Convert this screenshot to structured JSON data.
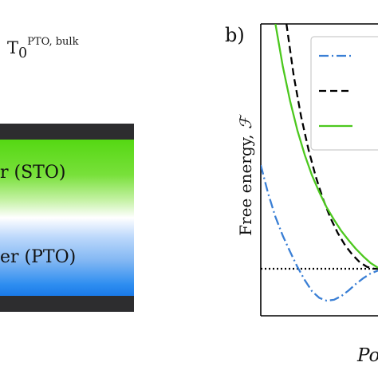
{
  "left_panel": {
    "temperature_base": "T",
    "temperature_subscript": "0",
    "temperature_superscript": "PTO, bulk",
    "top_layer_label": "r (STO)",
    "bottom_layer_label": "er (PTO)",
    "top_layer_color": "#55d813",
    "bottom_layer_color": "#1a7ae8",
    "cap_color": "#2d2d2f"
  },
  "right_panel": {
    "panel_label": "b)",
    "ylabel_text": "Free energy, ",
    "ylabel_symbol": "ℱ",
    "xlabel": "Po"
  },
  "chart_data": {
    "type": "line",
    "xlabel": "Po",
    "ylabel": "Free energy, ℱ",
    "legend_placement": "top-right",
    "baseline": {
      "y": 0,
      "style": "dotted",
      "color": "#000000"
    },
    "series": [
      {
        "style": "dashdot",
        "color": "#3a7fd5",
        "x": [
          0.6,
          0.7,
          0.8,
          0.9,
          1.0,
          1.1,
          1.2,
          1.3,
          1.4,
          1.5,
          1.6,
          1.7,
          1.8,
          1.9,
          2.0,
          2.1,
          2.2
        ],
        "y": [
          1.1,
          0.8,
          0.55,
          0.35,
          0.18,
          0.02,
          -0.12,
          -0.24,
          -0.31,
          -0.34,
          -0.33,
          -0.29,
          -0.23,
          -0.16,
          -0.1,
          -0.05,
          -0.02
        ]
      },
      {
        "style": "dashed",
        "color": "#000000",
        "x": [
          0.95,
          1.05,
          1.15,
          1.25,
          1.35,
          1.45,
          1.55,
          1.65,
          1.75,
          1.85,
          1.95,
          2.05,
          2.15,
          2.2
        ],
        "y": [
          2.6,
          2.05,
          1.62,
          1.27,
          0.98,
          0.74,
          0.54,
          0.38,
          0.25,
          0.15,
          0.07,
          0.02,
          0.0,
          0.0
        ]
      },
      {
        "style": "solid",
        "color": "#4cc81e",
        "x": [
          0.8,
          0.9,
          1.0,
          1.1,
          1.2,
          1.3,
          1.4,
          1.5,
          1.6,
          1.7,
          1.8,
          1.9,
          2.0,
          2.1,
          2.2
        ],
        "y": [
          2.6,
          2.15,
          1.78,
          1.47,
          1.21,
          0.99,
          0.81,
          0.65,
          0.52,
          0.4,
          0.3,
          0.21,
          0.13,
          0.06,
          0.01
        ]
      }
    ],
    "legend_entries": [
      {
        "style": "dashdot",
        "color": "#3a7fd5"
      },
      {
        "style": "dashed",
        "color": "#000000"
      },
      {
        "style": "solid",
        "color": "#4cc81e"
      }
    ]
  }
}
